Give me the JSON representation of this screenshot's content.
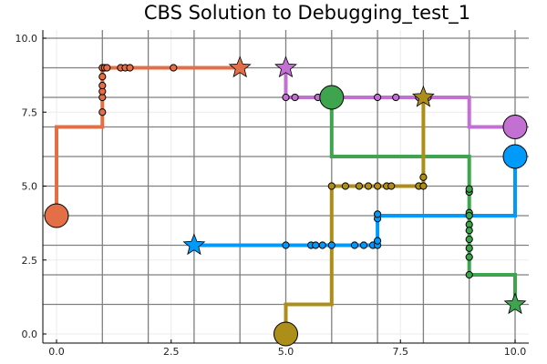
{
  "chart_data": {
    "type": "line",
    "title": "CBS Solution to Debugging_test_1",
    "xlim": [
      0,
      10
    ],
    "ylim": [
      0,
      10
    ],
    "x_ticks": [
      "0.0",
      "2.5",
      "5.0",
      "7.5",
      "10.0"
    ],
    "y_ticks": [
      "0.0",
      "2.5",
      "5.0",
      "7.5",
      "10.0"
    ],
    "x_tick_values": [
      0,
      2.5,
      5,
      7.5,
      10
    ],
    "y_tick_values": [
      0,
      2.5,
      5,
      7.5,
      10
    ],
    "grid": true,
    "legend": "none",
    "map_grid": {
      "x_lines": [
        1,
        2,
        3,
        4,
        5,
        6,
        7,
        8,
        9,
        10
      ],
      "y_lines": [
        1,
        2,
        3,
        4,
        5,
        6,
        7,
        8,
        9,
        10
      ]
    },
    "series": [
      {
        "color": "#E26F46",
        "start": [
          0,
          4
        ],
        "goal": [
          4,
          9
        ],
        "path": [
          [
            0,
            4
          ],
          [
            0,
            7
          ],
          [
            1,
            7
          ],
          [
            1,
            9
          ],
          [
            4,
            9
          ]
        ],
        "waypoints": [
          [
            1,
            7.5
          ],
          [
            1,
            8
          ],
          [
            1,
            8.2
          ],
          [
            1,
            8.4
          ],
          [
            1,
            8.7
          ],
          [
            1,
            9
          ],
          [
            1.05,
            9
          ],
          [
            1.1,
            9
          ],
          [
            1.4,
            9
          ],
          [
            1.5,
            9
          ],
          [
            1.6,
            9
          ],
          [
            2.55,
            9
          ]
        ]
      },
      {
        "color": "#C271D2",
        "start": [
          10,
          7
        ],
        "goal": [
          5,
          9
        ],
        "path": [
          [
            10,
            7
          ],
          [
            9,
            7
          ],
          [
            9,
            8
          ],
          [
            5,
            8
          ],
          [
            5,
            9
          ]
        ],
        "waypoints": [
          [
            5,
            8
          ],
          [
            5.2,
            8
          ],
          [
            5.7,
            8
          ],
          [
            7,
            8
          ],
          [
            7.4,
            8
          ],
          [
            7.9,
            8
          ],
          [
            8,
            8
          ],
          [
            8.1,
            8
          ]
        ]
      },
      {
        "color": "#3EA44E",
        "start": [
          6,
          8
        ],
        "goal": [
          10,
          1
        ],
        "path": [
          [
            6,
            8
          ],
          [
            6,
            6
          ],
          [
            9,
            6
          ],
          [
            9,
            2
          ],
          [
            10,
            2
          ],
          [
            10,
            1
          ]
        ],
        "waypoints": [
          [
            9,
            4.8
          ],
          [
            9,
            4.9
          ],
          [
            9,
            4.1
          ],
          [
            9,
            4
          ],
          [
            9,
            3.7
          ],
          [
            9,
            3.5
          ],
          [
            9,
            3.2
          ],
          [
            9,
            2.9
          ],
          [
            9,
            2.6
          ],
          [
            9,
            2
          ]
        ]
      },
      {
        "color": "#AC8E18",
        "start": [
          5,
          0
        ],
        "goal": [
          8,
          8
        ],
        "path": [
          [
            5,
            0
          ],
          [
            5,
            1
          ],
          [
            6,
            1
          ],
          [
            6,
            5
          ],
          [
            8,
            5
          ],
          [
            8,
            8
          ]
        ],
        "waypoints": [
          [
            6,
            5
          ],
          [
            6.3,
            5
          ],
          [
            6.6,
            5
          ],
          [
            6.8,
            5
          ],
          [
            7,
            5
          ],
          [
            7.2,
            5
          ],
          [
            7.3,
            5
          ],
          [
            7.9,
            5
          ],
          [
            8,
            5
          ],
          [
            8,
            5.3
          ]
        ]
      },
      {
        "color": "#009AFA",
        "start": [
          10,
          6
        ],
        "goal": [
          3,
          3
        ],
        "path": [
          [
            10,
            6
          ],
          [
            10,
            4
          ],
          [
            7,
            4
          ],
          [
            7,
            3
          ],
          [
            3,
            3
          ]
        ],
        "waypoints": [
          [
            5,
            3
          ],
          [
            5.55,
            3
          ],
          [
            5.65,
            3
          ],
          [
            5.8,
            3
          ],
          [
            6,
            3
          ],
          [
            6.5,
            3
          ],
          [
            6.7,
            3
          ],
          [
            6.9,
            3
          ],
          [
            7,
            3
          ],
          [
            7,
            3.15
          ],
          [
            7,
            3.9
          ],
          [
            7,
            4.05
          ]
        ]
      }
    ]
  }
}
